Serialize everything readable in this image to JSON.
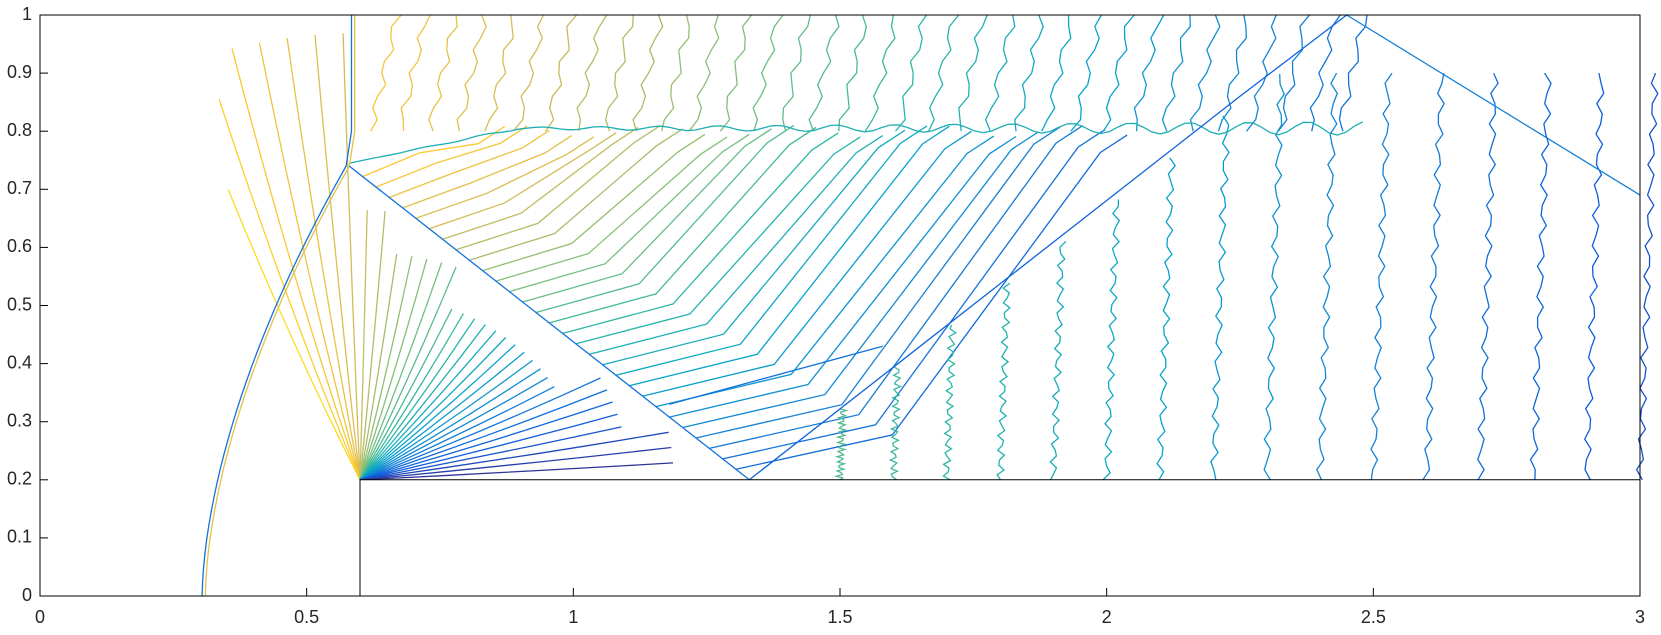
{
  "chart_data": {
    "type": "contour",
    "xlim": [
      0,
      3
    ],
    "ylim": [
      0,
      1
    ],
    "xticks": [
      0,
      0.5,
      1,
      1.5,
      2,
      2.5,
      3
    ],
    "yticks": [
      0,
      0.1,
      0.2,
      0.3,
      0.4,
      0.5,
      0.6,
      0.7,
      0.8,
      0.9,
      1
    ]
  }
}
